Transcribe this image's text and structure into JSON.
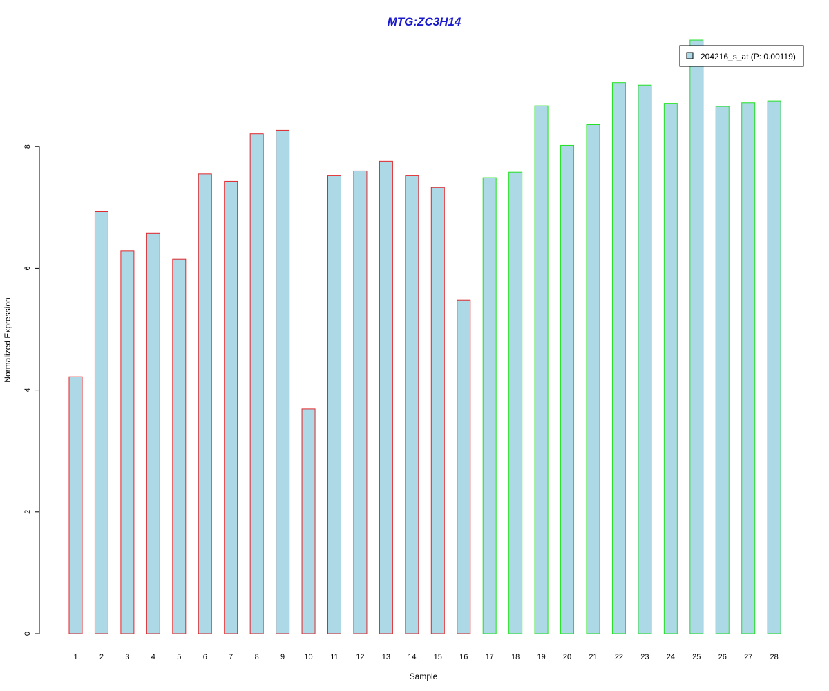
{
  "chart_data": {
    "type": "bar",
    "title": "MTG:ZC3H14",
    "xlabel": "Sample",
    "ylabel": "Normalized Expression",
    "ylim": [
      0,
      9.75
    ],
    "yticks": [
      0,
      2,
      4,
      6,
      8
    ],
    "categories": [
      "1",
      "2",
      "3",
      "4",
      "5",
      "6",
      "7",
      "8",
      "9",
      "10",
      "11",
      "12",
      "13",
      "14",
      "15",
      "16",
      "17",
      "18",
      "19",
      "20",
      "21",
      "22",
      "23",
      "24",
      "25",
      "26",
      "27",
      "28"
    ],
    "series": [
      {
        "name": "204216_s_at (P: 0.00119)",
        "values": [
          4.22,
          6.93,
          6.29,
          6.58,
          6.15,
          7.55,
          7.43,
          8.21,
          8.27,
          3.69,
          7.53,
          7.6,
          7.76,
          7.53,
          7.33,
          5.48,
          7.49,
          7.58,
          8.67,
          8.02,
          8.36,
          9.05,
          9.01,
          8.71,
          9.75,
          8.66,
          8.72,
          8.75
        ]
      }
    ],
    "groups": [
      {
        "range": [
          1,
          16
        ],
        "border_color": "#e0262a"
      },
      {
        "range": [
          17,
          28
        ],
        "border_color": "#20e020"
      }
    ],
    "bar_fill": "#add8e6",
    "title_color": "#1a1acc",
    "grid": false,
    "legend_position": "top-right"
  }
}
